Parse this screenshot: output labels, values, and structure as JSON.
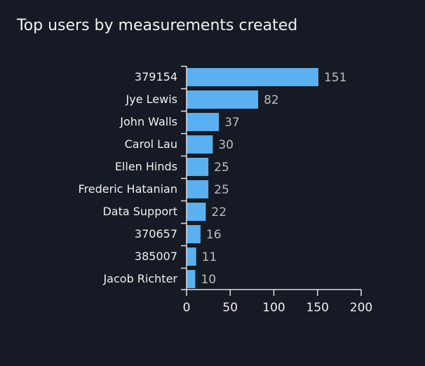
{
  "chart_data": {
    "type": "bar",
    "orientation": "horizontal",
    "title": "Top users by measurements created",
    "xlabel": "",
    "ylabel": "",
    "categories": [
      "379154",
      "Jye Lewis",
      "John Walls",
      "Carol Lau",
      "Ellen Hinds",
      "Frederic Hatanian",
      "Data Support",
      "370657",
      "385007",
      "Jacob Richter"
    ],
    "values": [
      151,
      82,
      37,
      30,
      25,
      25,
      22,
      16,
      11,
      10
    ],
    "xlim": [
      0,
      200
    ],
    "xticks": [
      0,
      50,
      100,
      150,
      200
    ],
    "grid": false,
    "data_labels": true,
    "colors": {
      "bar": "#5ab0f0",
      "background": "#151a24",
      "text": "#f0f0f0",
      "value_label": "#bdbdbd"
    }
  }
}
